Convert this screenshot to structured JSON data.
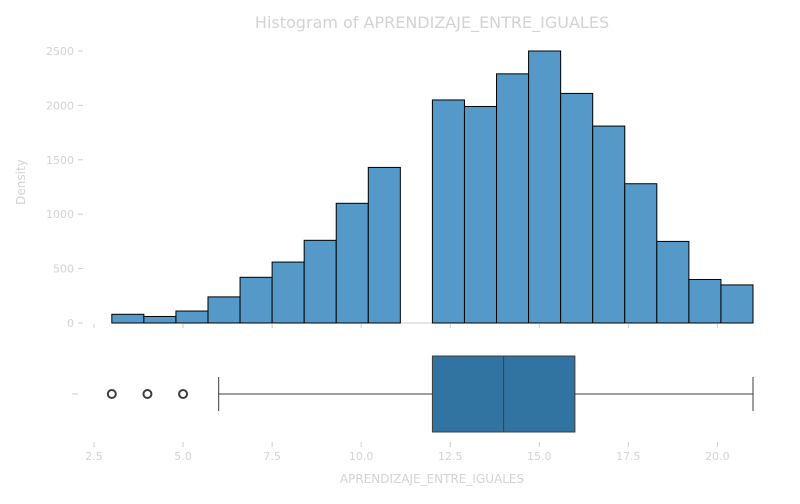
{
  "chart_data": {
    "type": "bar",
    "title": "Histogram of APRENDIZAJE_ENTRE_IGUALES",
    "xlabel": "APRENDIZAJE_ENTRE_IGUALES",
    "ylabel": "Density",
    "xlim": [
      2.5,
      21
    ],
    "ylim": [
      0,
      2600
    ],
    "x_ticks": [
      2.5,
      5.0,
      7.5,
      10.0,
      12.5,
      15.0,
      17.5,
      20.0
    ],
    "x_tick_labels": [
      "2.5",
      "5.0",
      "7.5",
      "10.0",
      "12.5",
      "15.0",
      "17.5",
      "20.0"
    ],
    "y_ticks": [
      0,
      500,
      1000,
      1500,
      2000,
      2500
    ],
    "y_tick_labels": [
      "0",
      "500",
      "1000",
      "1500",
      "2000",
      "2500"
    ],
    "grid": false,
    "bins": [
      {
        "x0": 3.0,
        "x1": 3.9,
        "count": 80
      },
      {
        "x0": 3.9,
        "x1": 4.8,
        "count": 60
      },
      {
        "x0": 4.8,
        "x1": 5.7,
        "count": 110
      },
      {
        "x0": 5.7,
        "x1": 6.6,
        "count": 240
      },
      {
        "x0": 6.6,
        "x1": 7.5,
        "count": 420
      },
      {
        "x0": 7.5,
        "x1": 8.4,
        "count": 560
      },
      {
        "x0": 8.4,
        "x1": 9.3,
        "count": 760
      },
      {
        "x0": 9.3,
        "x1": 10.2,
        "count": 1100
      },
      {
        "x0": 10.2,
        "x1": 11.1,
        "count": 1430
      },
      {
        "x0": 11.1,
        "x1": 12.0,
        "count": 0
      },
      {
        "x0": 12.0,
        "x1": 12.9,
        "count": 2050
      },
      {
        "x0": 12.9,
        "x1": 13.8,
        "count": 1990
      },
      {
        "x0": 13.8,
        "x1": 14.7,
        "count": 2290
      },
      {
        "x0": 14.7,
        "x1": 15.6,
        "count": 2500
      },
      {
        "x0": 15.6,
        "x1": 16.5,
        "count": 2110
      },
      {
        "x0": 16.5,
        "x1": 17.4,
        "count": 1810
      },
      {
        "x0": 17.4,
        "x1": 18.3,
        "count": 1280
      },
      {
        "x0": 18.3,
        "x1": 19.2,
        "count": 750
      },
      {
        "x0": 19.2,
        "x1": 20.1,
        "count": 400
      },
      {
        "x0": 20.1,
        "x1": 21.0,
        "count": 350
      }
    ],
    "boxplot": {
      "whisker_low": 6,
      "q1": 12,
      "median": 14,
      "q3": 16,
      "whisker_high": 21,
      "outliers": [
        3,
        4,
        5
      ]
    },
    "colors": {
      "bar_fill": "#5599c8",
      "bar_stroke": "#000000",
      "box_fill": "#3274a1",
      "box_line": "#3d3d3d",
      "text": "#d3d3d3",
      "axis": "#cccccc"
    }
  }
}
